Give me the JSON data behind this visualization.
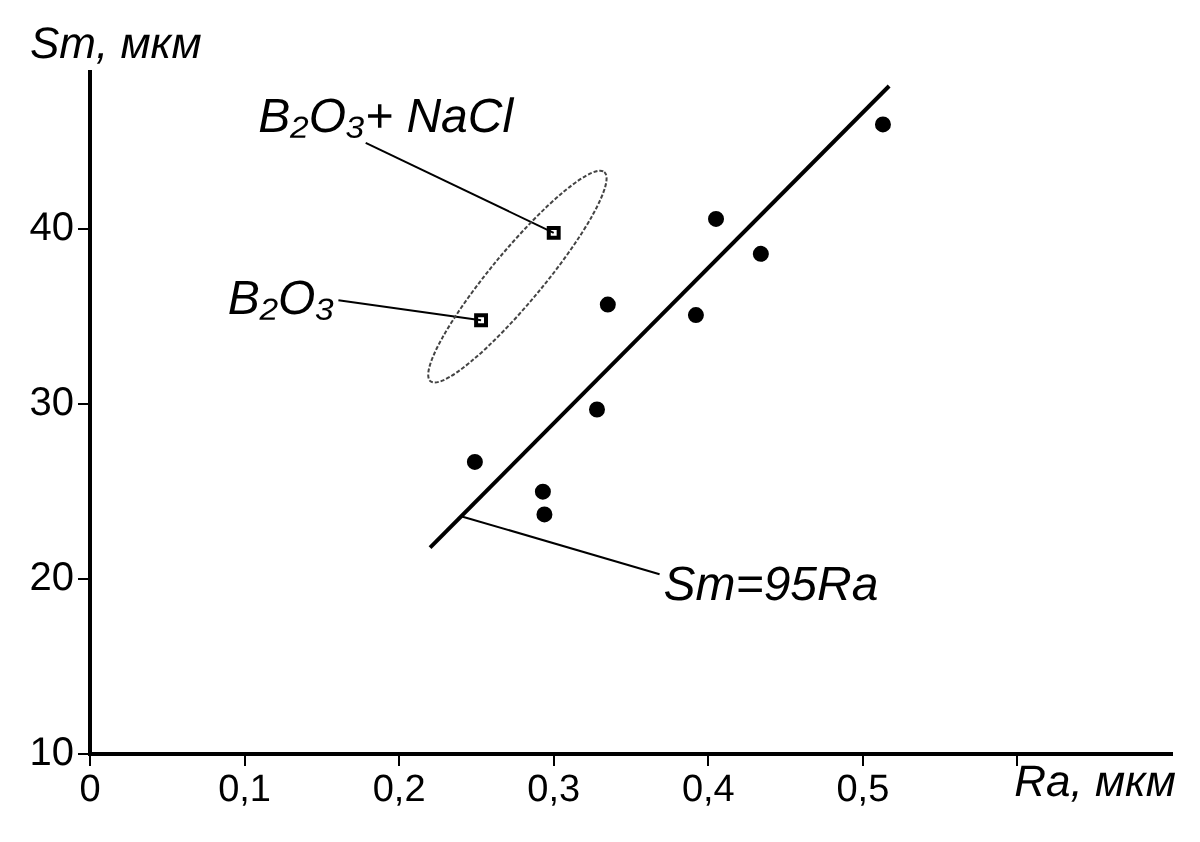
{
  "chart_data": {
    "type": "scatter",
    "xlabel": "Ra, мкм",
    "ylabel": "Sm, мкм",
    "xlim": [
      0,
      0.7
    ],
    "xticks": [
      {
        "value": 0,
        "label": "0"
      },
      {
        "value": 0.1,
        "label": "0,1"
      },
      {
        "value": 0.2,
        "label": "0,2"
      },
      {
        "value": 0.3,
        "label": "0,3"
      },
      {
        "value": 0.4,
        "label": "0,4"
      },
      {
        "value": 0.5,
        "label": "0,5"
      },
      {
        "value": 0.6,
        "label": null
      }
    ],
    "ylim": [
      10,
      49
    ],
    "yticks": [
      10,
      20,
      30,
      40
    ],
    "grid": false,
    "legend": false,
    "series": [
      {
        "type": "scatter",
        "marker": "circle",
        "color": "#000000",
        "x": [
          0.249,
          0.293,
          0.294,
          0.328,
          0.335,
          0.392,
          0.405,
          0.434,
          0.513
        ],
        "values": [
          26.7,
          25.0,
          23.7,
          29.7,
          35.7,
          35.1,
          40.6,
          38.6,
          46.0
        ]
      },
      {
        "type": "scatter",
        "marker": "square",
        "color": "#000000",
        "x": [
          0.253,
          0.3
        ],
        "values": [
          34.8,
          39.8
        ]
      },
      {
        "type": "line",
        "marker": "none",
        "line_style": "solid",
        "color": "#000000",
        "x": [
          0.22,
          0.517
        ],
        "values": [
          21.8,
          48.2
        ]
      }
    ],
    "annotations": [
      {
        "text": "B₂O₃+ NaCl",
        "x": 0.3,
        "y": 39.8
      },
      {
        "text": "B₂O₃",
        "x": 0.253,
        "y": 34.8
      },
      {
        "text": "Sm=95Ra",
        "x": 0.24,
        "y": 23.6
      }
    ]
  }
}
